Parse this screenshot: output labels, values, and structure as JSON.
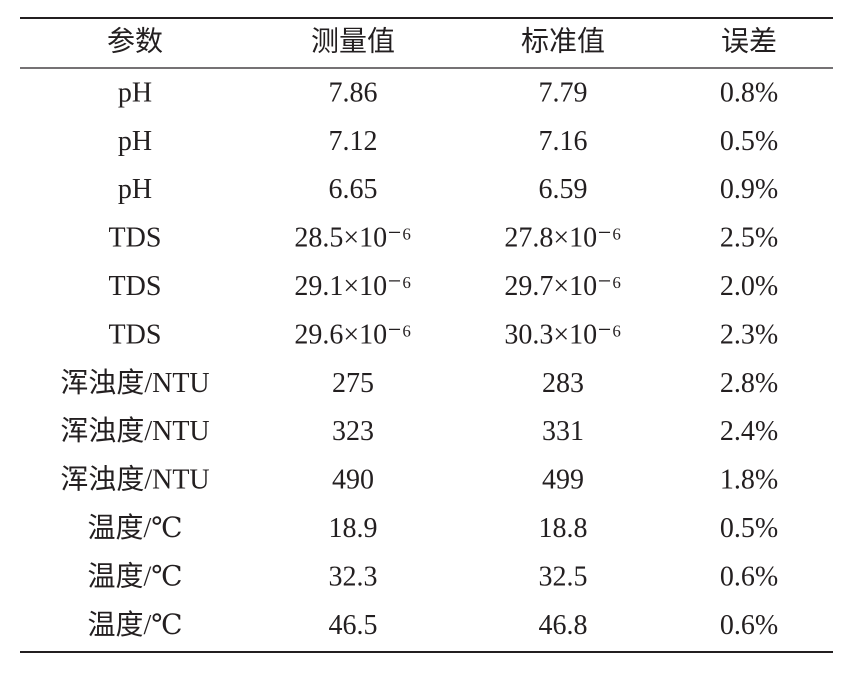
{
  "table": {
    "header": [
      "参数",
      "测量值",
      "标准值",
      "误差"
    ],
    "rows": [
      [
        "pH",
        "7.86",
        "7.79",
        "0.8%"
      ],
      [
        "pH",
        "7.12",
        "7.16",
        "0.5%"
      ],
      [
        "pH",
        "6.65",
        "6.59",
        "0.9%"
      ],
      [
        "TDS",
        "28.5×10⁻⁶",
        "27.8×10⁻⁶",
        "2.5%"
      ],
      [
        "TDS",
        "29.1×10⁻⁶",
        "29.7×10⁻⁶",
        "2.0%"
      ],
      [
        "TDS",
        "29.6×10⁻⁶",
        "30.3×10⁻⁶",
        "2.3%"
      ],
      [
        "浑浊度/NTU",
        "275",
        "283",
        "2.8%"
      ],
      [
        "浑浊度/NTU",
        "323",
        "331",
        "2.4%"
      ],
      [
        "浑浊度/NTU",
        "490",
        "499",
        "1.8%"
      ],
      [
        "温度/℃",
        "18.9",
        "18.8",
        "0.5%"
      ],
      [
        "温度/℃",
        "32.3",
        "32.5",
        "0.6%"
      ],
      [
        "温度/℃",
        "46.5",
        "46.8",
        "0.6%"
      ]
    ]
  }
}
